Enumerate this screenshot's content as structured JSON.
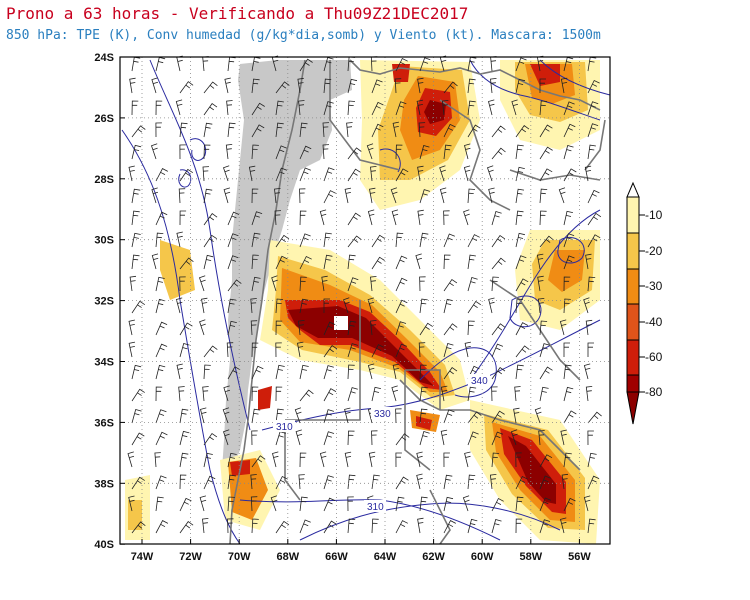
{
  "title": "Prono a 63 horas - Verificando a Thu09Z21DEC2017",
  "subtitle": "850 hPa: TPE (K), Conv humedad (g/kg*dia,somb) y Viento (kt). Mascara: 1500m",
  "colors": {
    "title": "#c8001e",
    "subtitle": "#2a7fbf",
    "mask": "#c8c8c8",
    "contour": "#2a2aa0",
    "border": "#777777",
    "c10": "#fff5b0",
    "c20": "#f5c64a",
    "c30": "#f08c14",
    "c40": "#e0541a",
    "c60": "#cf1e0a",
    "c80": "#8c0000"
  },
  "axes": {
    "x_ticks": [
      "74W",
      "72W",
      "70W",
      "68W",
      "66W",
      "64W",
      "62W",
      "60W",
      "58W",
      "56W"
    ],
    "y_ticks": [
      "24S",
      "26S",
      "28S",
      "30S",
      "32S",
      "34S",
      "36S",
      "38S",
      "40S"
    ]
  },
  "colorbar": {
    "labels": [
      "-10",
      "-20",
      "-30",
      "-40",
      "-60",
      "-80"
    ]
  },
  "contour_labels": [
    "340",
    "330",
    "310",
    "310"
  ]
}
